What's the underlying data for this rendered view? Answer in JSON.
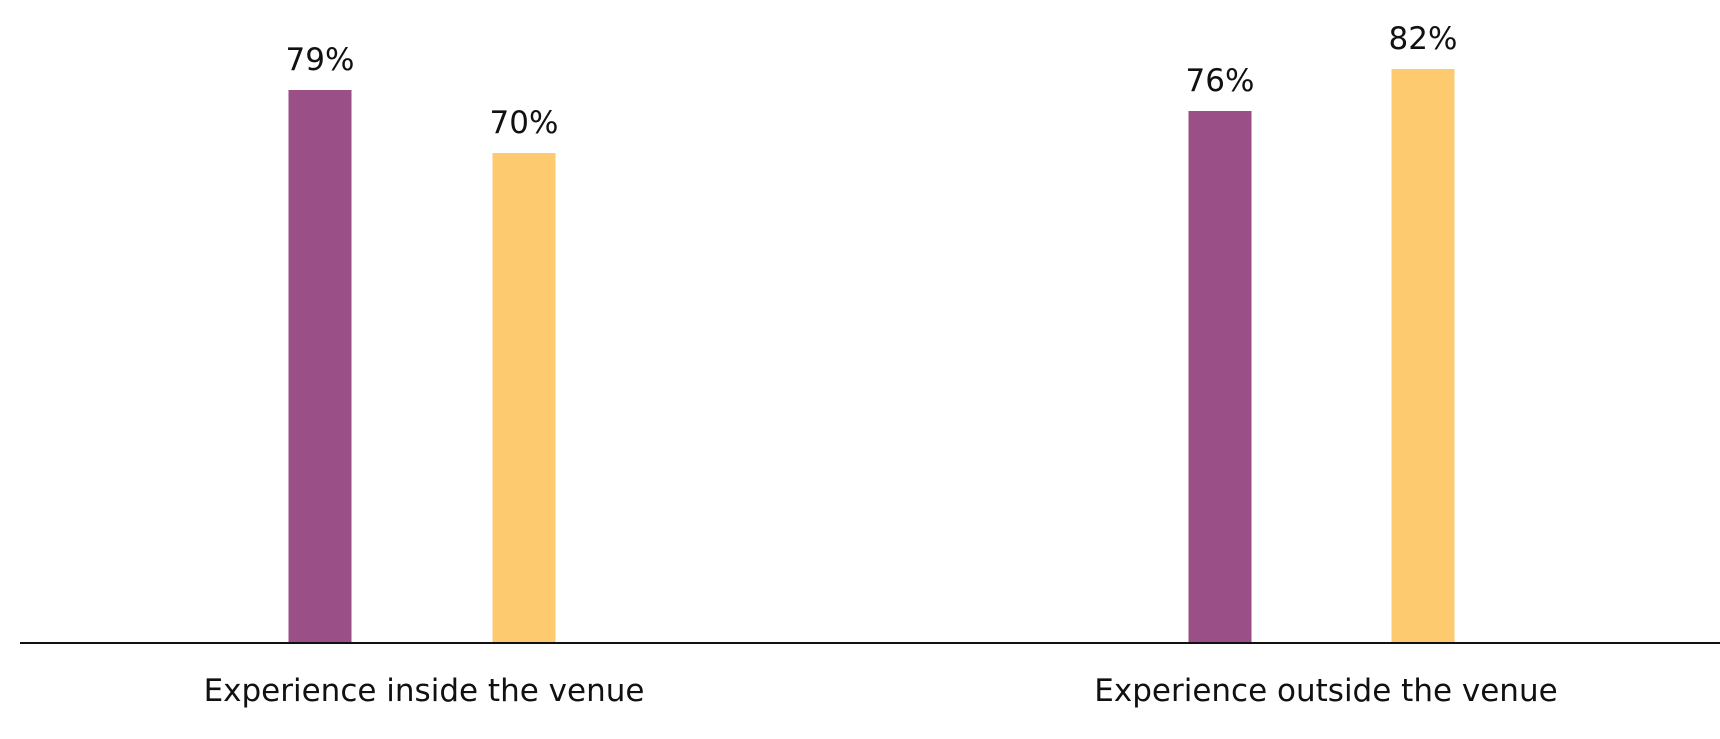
{
  "chart_data": {
    "type": "bar",
    "categories": [
      "Experience inside the venue",
      "Experience outside the venue"
    ],
    "series": [
      {
        "values": [
          79,
          76
        ],
        "labels": [
          "79%",
          "76%"
        ],
        "color": "#9a4f86"
      },
      {
        "values": [
          70,
          82
        ],
        "labels": [
          "70%",
          "82%"
        ],
        "color": "#fdca6f"
      }
    ],
    "ylim": [
      0,
      100
    ],
    "grid": false,
    "legend": "none",
    "axis_color": "#111111"
  }
}
